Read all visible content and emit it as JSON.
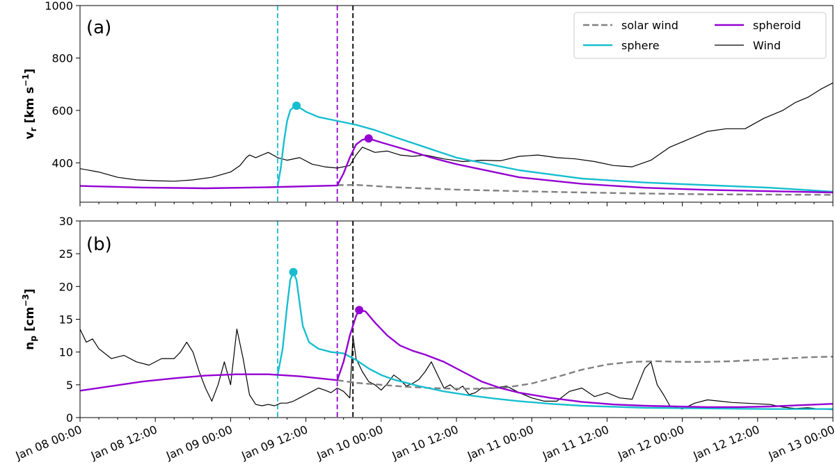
{
  "figure": {
    "x_tick_labels": [
      "Jan 08 00:00",
      "Jan 08 12:00",
      "Jan 09 00:00",
      "Jan 09 12:00",
      "Jan 10 00:00",
      "Jan 10 12:00",
      "Jan 11 00:00",
      "Jan 11 12:00",
      "Jan 12 00:00",
      "Jan 12 12:00",
      "Jan 13 00:00"
    ]
  },
  "legend": {
    "entries": [
      {
        "label": "solar wind",
        "color": "#808080",
        "style": "dashed"
      },
      {
        "label": "sphere",
        "color": "#17becf",
        "style": "solid"
      },
      {
        "label": "spheroid",
        "color": "#9400d3",
        "style": "solid"
      },
      {
        "label": "Wind",
        "color": "#000000",
        "style": "solid-thin"
      }
    ]
  },
  "colors": {
    "solar_wind": "#808080",
    "sphere": "#17becf",
    "spheroid": "#9400d3",
    "wind": "#000000"
  },
  "chart_data": [
    {
      "type": "line",
      "panel_label": "(a)",
      "ylabel_main": "v",
      "ylabel_sub": "r",
      "ylabel_unit": " [km s",
      "ylabel_sup": "−1",
      "ylabel_end": "]",
      "xlim": [
        0,
        120
      ],
      "x_unit_note": "hours since Jan 08 00:00",
      "ylim": [
        250,
        1000
      ],
      "yticks": [
        "400",
        "600",
        "800",
        "1000"
      ],
      "ytick_values": [
        400,
        600,
        800,
        1000
      ],
      "vlines": [
        {
          "x": 31.5,
          "color": "#17becf"
        },
        {
          "x": 41.0,
          "color": "#9400d3"
        },
        {
          "x": 43.5,
          "color": "#000000"
        }
      ],
      "markers": [
        {
          "series": "sphere",
          "x": 34.5,
          "y": 618
        },
        {
          "series": "spheroid",
          "x": 46.0,
          "y": 493
        }
      ],
      "series": [
        {
          "name": "solar wind",
          "x": [
            41,
            44,
            50,
            60,
            70,
            80,
            90,
            100,
            110,
            120
          ],
          "y": [
            315,
            316,
            307,
            298,
            292,
            287,
            283,
            280,
            279,
            278
          ]
        },
        {
          "name": "sphere",
          "x": [
            31.5,
            32.0,
            32.5,
            33.0,
            33.5,
            34.0,
            34.5,
            36,
            38,
            41,
            44,
            47,
            50,
            55,
            60,
            70,
            80,
            90,
            100,
            110,
            120
          ],
          "y": [
            310,
            380,
            480,
            560,
            600,
            612,
            618,
            595,
            575,
            560,
            545,
            525,
            500,
            460,
            420,
            372,
            340,
            325,
            315,
            305,
            290
          ]
        },
        {
          "name": "spheroid",
          "x": [
            0,
            10,
            20,
            30,
            41,
            42,
            43,
            44,
            45,
            46,
            48,
            52,
            56,
            60,
            70,
            80,
            90,
            100,
            110,
            120
          ],
          "y": [
            312,
            306,
            303,
            307,
            314,
            360,
            420,
            470,
            488,
            493,
            478,
            450,
            420,
            395,
            345,
            320,
            305,
            297,
            292,
            287
          ]
        },
        {
          "name": "Wind",
          "x": [
            0,
            3,
            6,
            9,
            12,
            15,
            18,
            21,
            24,
            25.5,
            26.5,
            27,
            28,
            30,
            31.5,
            33,
            35,
            37,
            39,
            41,
            43,
            44,
            45,
            47,
            49,
            51,
            53,
            55,
            58,
            61,
            64,
            67,
            70,
            73,
            76,
            79,
            82,
            85,
            88,
            91,
            94,
            97,
            100,
            103,
            106,
            109,
            112,
            114,
            116,
            118,
            120
          ],
          "y": [
            378,
            365,
            345,
            335,
            332,
            330,
            335,
            345,
            365,
            390,
            420,
            430,
            420,
            440,
            420,
            410,
            420,
            395,
            385,
            380,
            390,
            430,
            460,
            440,
            445,
            430,
            425,
            430,
            415,
            405,
            410,
            408,
            425,
            430,
            420,
            415,
            405,
            390,
            385,
            410,
            460,
            490,
            520,
            530,
            530,
            570,
            600,
            630,
            650,
            680,
            705
          ]
        }
      ]
    },
    {
      "type": "line",
      "panel_label": "(b)",
      "ylabel_main": "n",
      "ylabel_sub": "p",
      "ylabel_unit": " [cm",
      "ylabel_sup": "−3",
      "ylabel_end": "]",
      "xlim": [
        0,
        120
      ],
      "x_unit_note": "hours since Jan 08 00:00",
      "ylim": [
        0,
        30
      ],
      "yticks": [
        "0",
        "5",
        "10",
        "15",
        "20",
        "25",
        "30"
      ],
      "ytick_values": [
        0,
        5,
        10,
        15,
        20,
        25,
        30
      ],
      "vlines": [
        {
          "x": 31.5,
          "color": "#17becf"
        },
        {
          "x": 41.0,
          "color": "#9400d3"
        },
        {
          "x": 43.5,
          "color": "#000000"
        }
      ],
      "markers": [
        {
          "series": "sphere",
          "x": 34.0,
          "y": 22.2
        },
        {
          "series": "spheroid",
          "x": 44.5,
          "y": 16.4
        }
      ],
      "series": [
        {
          "name": "solar wind",
          "x": [
            41,
            44,
            48,
            52,
            56,
            60,
            64,
            68,
            72,
            76,
            80,
            84,
            88,
            92,
            96,
            100,
            104,
            108,
            112,
            116,
            120
          ],
          "y": [
            5.7,
            5.3,
            5.0,
            4.7,
            4.5,
            4.4,
            4.4,
            4.6,
            5.2,
            6.2,
            7.3,
            8.1,
            8.5,
            8.6,
            8.5,
            8.5,
            8.6,
            8.8,
            9.0,
            9.2,
            9.3
          ]
        },
        {
          "name": "sphere",
          "x": [
            31.5,
            32.3,
            33.0,
            33.5,
            34.0,
            34.5,
            35.0,
            35.5,
            36.5,
            38,
            40,
            42,
            44,
            46,
            48,
            50,
            54,
            58,
            62,
            66,
            70,
            75,
            80,
            90,
            100,
            110,
            120
          ],
          "y": [
            6.5,
            10.5,
            17.0,
            21.0,
            22.2,
            21.0,
            17.5,
            14.0,
            11.5,
            10.5,
            10.0,
            9.8,
            8.8,
            7.5,
            6.5,
            5.8,
            4.8,
            4.0,
            3.4,
            2.9,
            2.5,
            2.1,
            1.8,
            1.5,
            1.4,
            1.3,
            1.3
          ]
        },
        {
          "name": "spheroid",
          "x": [
            0,
            5,
            10,
            15,
            20,
            25,
            30,
            35,
            41,
            42,
            43,
            44,
            44.5,
            45.5,
            47,
            49,
            51,
            53,
            55,
            58,
            61,
            64,
            67,
            70,
            75,
            80,
            85,
            90,
            95,
            100,
            105,
            110,
            115,
            120
          ],
          "y": [
            4.1,
            4.8,
            5.5,
            6.0,
            6.4,
            6.6,
            6.6,
            6.3,
            5.7,
            8.5,
            12.5,
            15.5,
            16.4,
            16.2,
            14.5,
            12.5,
            11.0,
            10.2,
            9.6,
            8.5,
            7.0,
            5.5,
            4.5,
            3.8,
            3.0,
            2.4,
            2.0,
            1.8,
            1.7,
            1.6,
            1.6,
            1.7,
            1.9,
            2.1
          ]
        },
        {
          "name": "Wind",
          "x": [
            0,
            1,
            2,
            3,
            5,
            7,
            9,
            11,
            13,
            15,
            16,
            17,
            18,
            19,
            20,
            21,
            22,
            23,
            24,
            25,
            26,
            27,
            28,
            29,
            30,
            31,
            32,
            33,
            34,
            35,
            36,
            37,
            38,
            39,
            40,
            41,
            42,
            43,
            43.5,
            44,
            45,
            46,
            47,
            48,
            49,
            50,
            51,
            52,
            53,
            54,
            55,
            56,
            57,
            58,
            59,
            60,
            61,
            62,
            63,
            64,
            66,
            68,
            70,
            72,
            74,
            76,
            78,
            80,
            82,
            84,
            86,
            88,
            90,
            91,
            92,
            93,
            94,
            96,
            98,
            100,
            102,
            104,
            106,
            108,
            110,
            112,
            114,
            116,
            118,
            120
          ],
          "y": [
            13.5,
            11.5,
            12.0,
            10.5,
            9.0,
            9.5,
            8.5,
            8.0,
            9.0,
            9.0,
            10.0,
            11.5,
            10.0,
            7.0,
            4.5,
            2.5,
            5.0,
            8.5,
            5.0,
            13.5,
            9.0,
            3.5,
            2.0,
            1.8,
            2.0,
            1.8,
            2.2,
            2.2,
            2.5,
            3.0,
            3.5,
            4.0,
            4.5,
            4.2,
            3.8,
            4.5,
            4.0,
            3.0,
            12.5,
            9.0,
            7.0,
            5.5,
            5.0,
            4.2,
            5.2,
            6.5,
            5.8,
            4.8,
            5.2,
            5.8,
            7.0,
            8.5,
            6.5,
            4.5,
            5.0,
            4.2,
            4.8,
            3.5,
            3.8,
            4.5,
            4.5,
            4.8,
            3.8,
            3.0,
            2.5,
            2.5,
            4.0,
            4.5,
            3.2,
            3.8,
            3.0,
            2.8,
            7.5,
            8.5,
            5.0,
            3.5,
            1.8,
            1.3,
            2.2,
            2.7,
            2.5,
            2.3,
            2.2,
            2.1,
            2.0,
            1.6,
            1.4,
            1.5,
            1.3,
            1.2
          ]
        }
      ]
    }
  ]
}
